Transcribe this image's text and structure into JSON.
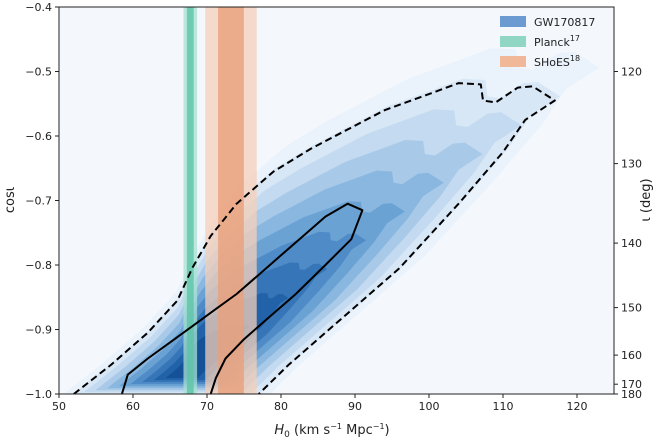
{
  "chart_data": {
    "type": "contour",
    "x_axis": {
      "label_main": "H",
      "label_sub": "0",
      "label_unit": " (km s",
      "label_unit_exp1": "−1",
      "label_unit_mid": " Mpc",
      "label_unit_exp2": "−1",
      "label_close": ")",
      "range": [
        50,
        125
      ],
      "ticks": [
        50,
        60,
        70,
        80,
        90,
        100,
        110,
        120
      ],
      "tick_labels": [
        "50",
        "60",
        "70",
        "80",
        "90",
        "100",
        "110",
        "120"
      ]
    },
    "y_axis_left": {
      "label": "cosι",
      "range": [
        -1.0,
        -0.4
      ],
      "ticks": [
        -1.0,
        -0.9,
        -0.8,
        -0.7,
        -0.6,
        -0.5,
        -0.4
      ],
      "tick_labels": [
        "−1.0",
        "−0.9",
        "−0.8",
        "−0.7",
        "−0.6",
        "−0.5",
        "−0.4"
      ]
    },
    "y_axis_right": {
      "label": "ι (deg)",
      "ticks": [
        120,
        130,
        140,
        150,
        160,
        170,
        180
      ],
      "tick_labels": [
        "120",
        "130",
        "140",
        "150",
        "160",
        "170",
        "180"
      ]
    },
    "legend": {
      "position": "top-right",
      "entries": [
        {
          "label": "GW170817",
          "sup": "",
          "color": "#6b9bd1"
        },
        {
          "label": "Planck",
          "sup": "17",
          "color": "#8fd6c4"
        },
        {
          "label": "SHoES",
          "sup": "18",
          "color": "#f0b898"
        }
      ]
    },
    "bands": [
      {
        "name": "Planck",
        "center": 67.74,
        "sigma1": 0.46,
        "sigma2": 0.92,
        "color1": "#5cc4a8",
        "color2": "#a8e2d2"
      },
      {
        "name": "SHoES",
        "center": 73.24,
        "sigma1": 1.74,
        "sigma2": 3.48,
        "color1": "#e8a07a",
        "color2": "#f6cfb8"
      }
    ],
    "contour_68": [
      [
        58.5,
        -1.0
      ],
      [
        59.3,
        -0.97
      ],
      [
        62,
        -0.945
      ],
      [
        65,
        -0.92
      ],
      [
        68,
        -0.895
      ],
      [
        71,
        -0.87
      ],
      [
        74,
        -0.845
      ],
      [
        77,
        -0.815
      ],
      [
        80,
        -0.785
      ],
      [
        83,
        -0.755
      ],
      [
        86,
        -0.725
      ],
      [
        89,
        -0.705
      ],
      [
        91,
        -0.715
      ],
      [
        89.5,
        -0.76
      ],
      [
        86,
        -0.8
      ],
      [
        82,
        -0.845
      ],
      [
        78,
        -0.885
      ],
      [
        75,
        -0.915
      ],
      [
        72.5,
        -0.945
      ],
      [
        71.2,
        -0.975
      ],
      [
        70.5,
        -1.0
      ]
    ],
    "contour_95": [
      [
        52,
        -1.0
      ],
      [
        57,
        -0.955
      ],
      [
        62,
        -0.905
      ],
      [
        66,
        -0.855
      ],
      [
        68,
        -0.805
      ],
      [
        70.5,
        -0.755
      ],
      [
        74,
        -0.705
      ],
      [
        79,
        -0.655
      ],
      [
        84,
        -0.62
      ],
      [
        89,
        -0.59
      ],
      [
        94,
        -0.56
      ],
      [
        100,
        -0.535
      ],
      [
        104,
        -0.518
      ],
      [
        107,
        -0.52
      ],
      [
        107.3,
        -0.545
      ],
      [
        109,
        -0.548
      ],
      [
        112,
        -0.525
      ],
      [
        114,
        -0.523
      ],
      [
        117,
        -0.545
      ],
      [
        113,
        -0.575
      ],
      [
        110,
        -0.625
      ],
      [
        104,
        -0.705
      ],
      [
        100,
        -0.755
      ],
      [
        96,
        -0.805
      ],
      [
        91,
        -0.855
      ],
      [
        86,
        -0.905
      ],
      [
        81,
        -0.955
      ],
      [
        77,
        -1.0
      ]
    ],
    "density_levels_color": [
      "#eaf2fb",
      "#d8e7f6",
      "#c3daf0",
      "#a8cae8",
      "#8ab7df",
      "#6ba2d4",
      "#4f8cc7",
      "#3676b8",
      "#2262a8",
      "#145196"
    ]
  }
}
